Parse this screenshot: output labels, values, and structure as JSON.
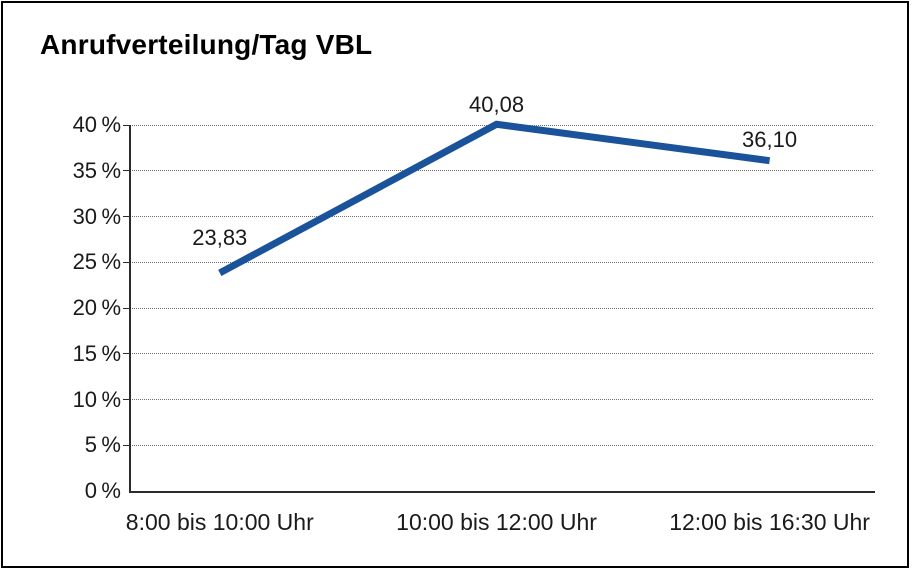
{
  "title": "Anrufverteilung/Tag VBL",
  "frame": {
    "background": "#ffffff",
    "border_color": "#000000"
  },
  "chart_data": {
    "type": "line",
    "title": "Anrufverteilung/Tag VBL",
    "categories": [
      "8:00 bis 10:00 Uhr",
      "10:00 bis 12:00 Uhr",
      "12:00 bis 16:30 Uhr"
    ],
    "values": [
      23.83,
      40.08,
      36.1
    ],
    "value_labels": [
      "23,83",
      "40,08",
      "36,10"
    ],
    "xlabel": "",
    "ylabel": "",
    "ylim": [
      0,
      40
    ],
    "ytick_step": 5,
    "ytick_labels": [
      "0 %",
      "5 %",
      "10 %",
      "15 %",
      "20 %",
      "25 %",
      "30 %",
      "35 %",
      "40 %"
    ],
    "grid": "horizontal-dotted",
    "legend": "none",
    "line_color": "#1B539B",
    "axis_color": "#2b2b2b",
    "gridline_color": "#6e6e6e",
    "text_color": "#1a1a1a"
  }
}
